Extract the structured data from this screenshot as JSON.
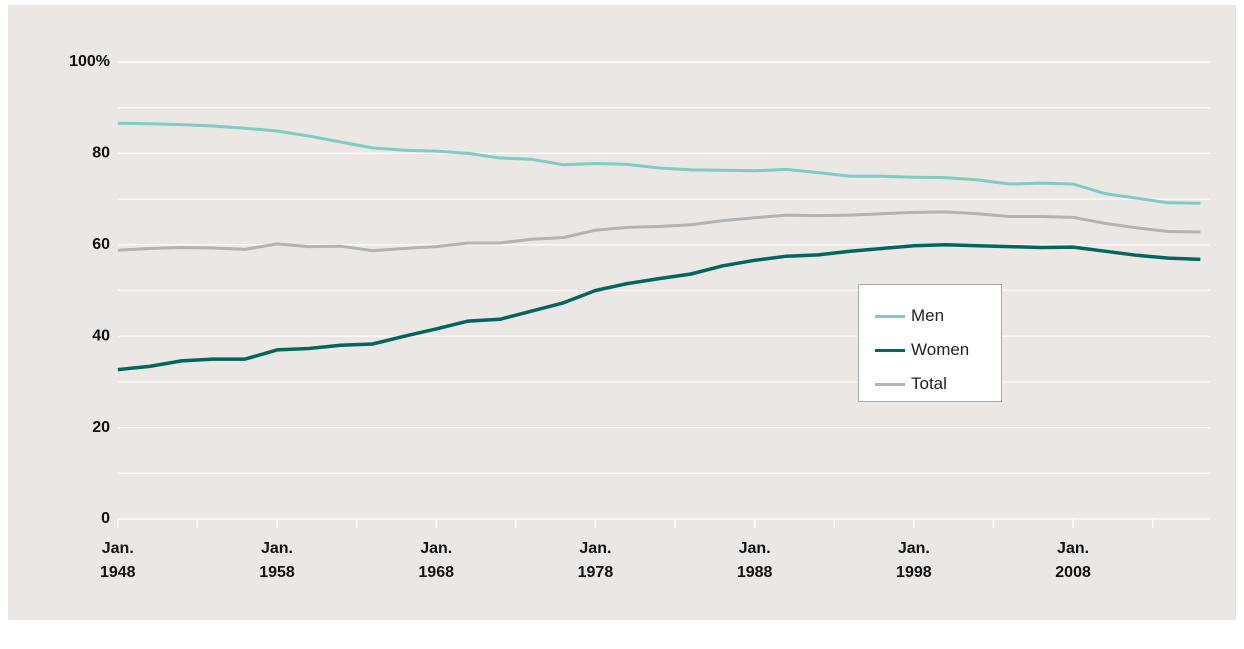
{
  "chart_data": {
    "type": "line",
    "x": [
      1948,
      1950,
      1952,
      1954,
      1956,
      1958,
      1960,
      1962,
      1964,
      1966,
      1968,
      1970,
      1972,
      1974,
      1976,
      1978,
      1980,
      1982,
      1984,
      1986,
      1988,
      1990,
      1992,
      1994,
      1996,
      1998,
      2000,
      2002,
      2004,
      2006,
      2008,
      2010,
      2012,
      2014,
      2016
    ],
    "series": [
      {
        "name": "Men",
        "color": "#7ecdc0",
        "values": [
          86.6,
          86.5,
          86.3,
          86.0,
          85.5,
          84.9,
          83.8,
          82.5,
          81.2,
          80.7,
          80.5,
          80.0,
          79.0,
          78.7,
          77.5,
          77.8,
          77.6,
          76.8,
          76.4,
          76.3,
          76.2,
          76.5,
          75.8,
          75.0,
          75.0,
          74.8,
          74.7,
          74.2,
          73.3,
          73.5,
          73.3,
          71.2,
          70.2,
          69.2,
          69.1
        ]
      },
      {
        "name": "Women",
        "color": "#00665e",
        "values": [
          32.7,
          33.4,
          34.6,
          35.0,
          35.0,
          37.0,
          37.3,
          38.0,
          38.3,
          40.0,
          41.6,
          43.3,
          43.7,
          45.5,
          47.3,
          50.0,
          51.5,
          52.6,
          53.6,
          55.4,
          56.6,
          57.5,
          57.8,
          58.6,
          59.2,
          59.8,
          60.0,
          59.8,
          59.6,
          59.4,
          59.5,
          58.6,
          57.7,
          57.1,
          56.8
        ]
      },
      {
        "name": "Total",
        "color": "#b3b3b3",
        "values": [
          58.8,
          59.2,
          59.4,
          59.3,
          59.0,
          60.2,
          59.6,
          59.7,
          58.7,
          59.2,
          59.6,
          60.4,
          60.4,
          61.2,
          61.6,
          63.2,
          63.8,
          64.0,
          64.4,
          65.3,
          65.9,
          66.5,
          66.4,
          66.5,
          66.8,
          67.1,
          67.2,
          66.8,
          66.2,
          66.2,
          66.0,
          64.7,
          63.7,
          62.9,
          62.8
        ]
      }
    ],
    "xlim": [
      1947.7,
      2016.6
    ],
    "xticks": [
      {
        "value": 1948,
        "label": "Jan.\n1948"
      },
      {
        "value": 1958,
        "label": "Jan.\n1958"
      },
      {
        "value": 1968,
        "label": "Jan.\n1968"
      },
      {
        "value": 1978,
        "label": "Jan.\n1978"
      },
      {
        "value": 1988,
        "label": "Jan.\n1988"
      },
      {
        "value": 1998,
        "label": "Jan.\n1998"
      },
      {
        "value": 2008,
        "label": "Jan.\n2008"
      }
    ],
    "minor_xticks": [
      1953,
      1963,
      1973,
      1983,
      1993,
      2003,
      2013
    ],
    "ylim": [
      0,
      100
    ],
    "yticks": [
      0,
      20,
      40,
      60,
      80,
      {
        "value": 100,
        "label": "100%"
      }
    ],
    "minor_yticks": [
      10,
      30,
      50,
      70,
      90
    ],
    "grid": true
  }
}
